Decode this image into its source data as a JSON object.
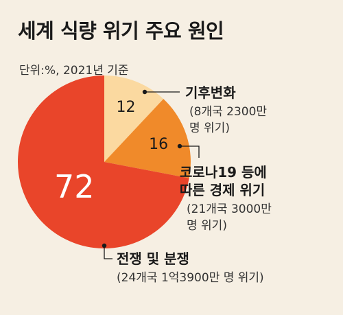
{
  "title": "세계 식량 위기 주요 원인",
  "unit_note": "단위:%, 2021년 기준",
  "chart_data": {
    "type": "pie",
    "title": "세계 식량 위기 주요 원인",
    "unit": "%",
    "categories": [
      "기후변화",
      "코로나19 등에 따른 경제 위기",
      "전쟁 및 분쟁"
    ],
    "values": [
      12,
      16,
      72
    ],
    "colors": [
      "#fbd9a0",
      "#f08a2a",
      "#e9452a"
    ],
    "annotations": [
      {
        "label_lines": [
          "기후변화"
        ],
        "detail_lines": [
          "(8개국 2300만",
          "명 위기)"
        ]
      },
      {
        "label_lines": [
          "코로나19 등에",
          "따른 경제 위기"
        ],
        "detail_lines": [
          "(21개국 3000만",
          "명 위기)"
        ]
      },
      {
        "label_lines": [
          "전쟁 및 분쟁"
        ],
        "detail_lines": [
          "(24개국 1억3900만 명 위기)"
        ]
      }
    ]
  }
}
